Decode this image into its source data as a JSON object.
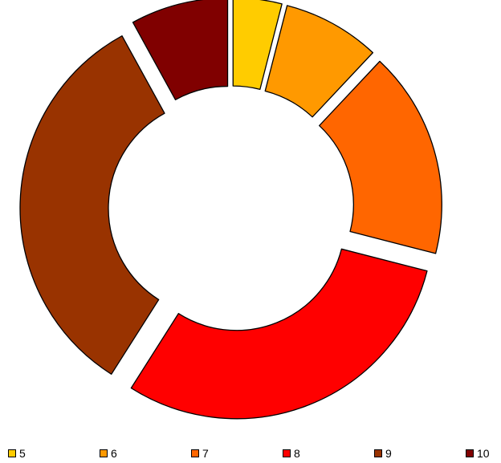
{
  "chart_data": {
    "type": "pie",
    "style": "exploded-donut",
    "categories": [
      "5",
      "6",
      "7",
      "8",
      "9",
      "10"
    ],
    "values": [
      4,
      8,
      17,
      30,
      33,
      8
    ],
    "colors": [
      "#FFCC00",
      "#FF9900",
      "#FF6600",
      "#FF0000",
      "#993300",
      "#800000"
    ],
    "title": "",
    "legend_position": "bottom"
  }
}
